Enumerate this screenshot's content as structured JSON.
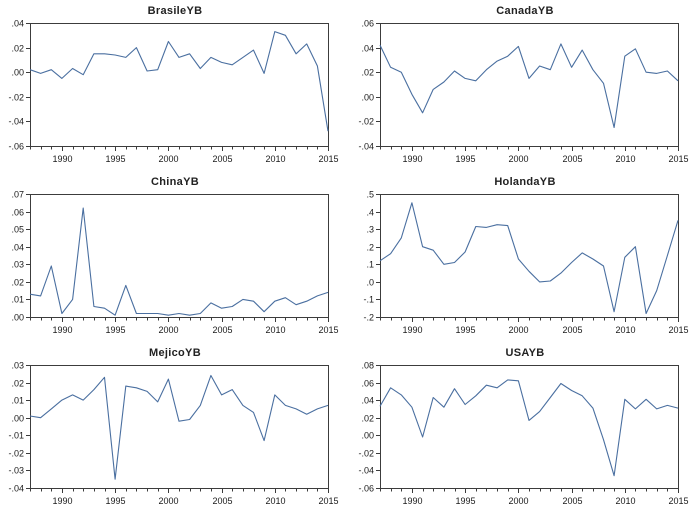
{
  "page": {
    "background": "#ffffff"
  },
  "styles": {
    "line_color": "#4a6fa0",
    "axis_color": "#3c3c3c",
    "text_color": "#1a1a1a"
  },
  "x_years": [
    1987,
    1988,
    1989,
    1990,
    1991,
    1992,
    1993,
    1994,
    1995,
    1996,
    1997,
    1998,
    1999,
    2000,
    2001,
    2002,
    2003,
    2004,
    2005,
    2006,
    2007,
    2008,
    2009,
    2010,
    2011,
    2012,
    2013,
    2014,
    2015
  ],
  "x_tick_years": [
    1990,
    1995,
    2000,
    2005,
    2010,
    2015
  ],
  "x_tick_labels": [
    "1990",
    "1995",
    "2000",
    "2005",
    "2010",
    "2015"
  ],
  "chart_data": [
    {
      "id": "brasileyb",
      "type": "line",
      "title": "BrasileYB",
      "xlabel": "",
      "ylabel": "",
      "grid": false,
      "legend": "none",
      "x_range": [
        1987,
        2015
      ],
      "ylim": [
        -0.06,
        0.04
      ],
      "y_tick_labels": [
        ".04",
        ".02",
        ".00",
        "-.02",
        "-.04",
        "-.06"
      ],
      "values": [
        0.002,
        -0.001,
        0.002,
        -0.005,
        0.003,
        -0.002,
        0.015,
        0.015,
        0.014,
        0.012,
        0.02,
        0.001,
        0.002,
        0.025,
        0.012,
        0.015,
        0.003,
        0.012,
        0.008,
        0.006,
        0.012,
        0.018,
        -0.001,
        0.033,
        0.03,
        0.015,
        0.023,
        0.005,
        -0.048
      ]
    },
    {
      "id": "canadayb",
      "type": "line",
      "title": "CanadaYB",
      "xlabel": "",
      "ylabel": "",
      "grid": false,
      "legend": "none",
      "x_range": [
        1987,
        2015
      ],
      "ylim": [
        -0.04,
        0.06
      ],
      "y_tick_labels": [
        ".06",
        ".04",
        ".02",
        ".00",
        "-.02",
        "-.04"
      ],
      "values": [
        0.042,
        0.024,
        0.02,
        0.002,
        -0.013,
        0.006,
        0.012,
        0.021,
        0.015,
        0.013,
        0.022,
        0.029,
        0.033,
        0.041,
        0.015,
        0.025,
        0.022,
        0.043,
        0.024,
        0.038,
        0.022,
        0.011,
        -0.025,
        0.033,
        0.039,
        0.02,
        0.019,
        0.021,
        0.013
      ]
    },
    {
      "id": "chinayb",
      "type": "line",
      "title": "ChinaYB",
      "xlabel": "",
      "ylabel": "",
      "grid": false,
      "legend": "none",
      "x_range": [
        1987,
        2015
      ],
      "ylim": [
        0.0,
        0.07
      ],
      "y_tick_labels": [
        ".07",
        ".06",
        ".05",
        ".04",
        ".03",
        ".02",
        ".01",
        ".00"
      ],
      "values": [
        0.013,
        0.012,
        0.029,
        0.002,
        0.01,
        0.062,
        0.006,
        0.005,
        0.001,
        0.018,
        0.002,
        0.002,
        0.002,
        0.001,
        0.002,
        0.001,
        0.002,
        0.008,
        0.005,
        0.006,
        0.01,
        0.009,
        0.003,
        0.009,
        0.011,
        0.007,
        0.009,
        0.012,
        0.014
      ]
    },
    {
      "id": "holandayb",
      "type": "line",
      "title": "HolandaYB",
      "xlabel": "",
      "ylabel": "",
      "grid": false,
      "legend": "none",
      "x_range": [
        1987,
        2015
      ],
      "ylim": [
        -0.2,
        0.5
      ],
      "y_tick_labels": [
        ".5",
        ".4",
        ".3",
        ".2",
        ".1",
        ".0",
        "-.1",
        "-.2"
      ],
      "values": [
        0.12,
        0.16,
        0.25,
        0.45,
        0.2,
        0.18,
        0.1,
        0.11,
        0.17,
        0.315,
        0.31,
        0.325,
        0.32,
        0.13,
        0.06,
        0.0,
        0.005,
        0.05,
        0.11,
        0.165,
        0.13,
        0.09,
        -0.17,
        0.14,
        0.2,
        -0.18,
        -0.05,
        0.15,
        0.35
      ]
    },
    {
      "id": "mejicoyb",
      "type": "line",
      "title": "MejicoYB",
      "xlabel": "",
      "ylabel": "",
      "grid": false,
      "legend": "none",
      "x_range": [
        1987,
        2015
      ],
      "ylim": [
        -0.04,
        0.03
      ],
      "y_tick_labels": [
        ".03",
        ".02",
        ".01",
        ".00",
        "-.01",
        "-.02",
        "-.03",
        "-.04"
      ],
      "values": [
        0.001,
        0.0,
        0.005,
        0.01,
        0.013,
        0.01,
        0.016,
        0.023,
        -0.035,
        0.018,
        0.017,
        0.015,
        0.009,
        0.022,
        -0.002,
        -0.001,
        0.007,
        0.024,
        0.013,
        0.016,
        0.007,
        0.003,
        -0.013,
        0.013,
        0.007,
        0.005,
        0.002,
        0.005,
        0.007
      ]
    },
    {
      "id": "usayb",
      "type": "line",
      "title": "USAYB",
      "xlabel": "",
      "ylabel": "",
      "grid": false,
      "legend": "none",
      "x_range": [
        1987,
        2015
      ],
      "ylim": [
        -0.06,
        0.08
      ],
      "y_tick_labels": [
        ".08",
        ".06",
        ".04",
        ".02",
        ".00",
        "-.02",
        "-.04",
        "-.06"
      ],
      "values": [
        0.033,
        0.054,
        0.046,
        0.032,
        -0.002,
        0.043,
        0.032,
        0.053,
        0.035,
        0.045,
        0.057,
        0.054,
        0.063,
        0.062,
        0.017,
        0.027,
        0.043,
        0.059,
        0.051,
        0.045,
        0.031,
        -0.005,
        -0.046,
        0.041,
        0.03,
        0.041,
        0.03,
        0.034,
        0.031
      ]
    }
  ]
}
